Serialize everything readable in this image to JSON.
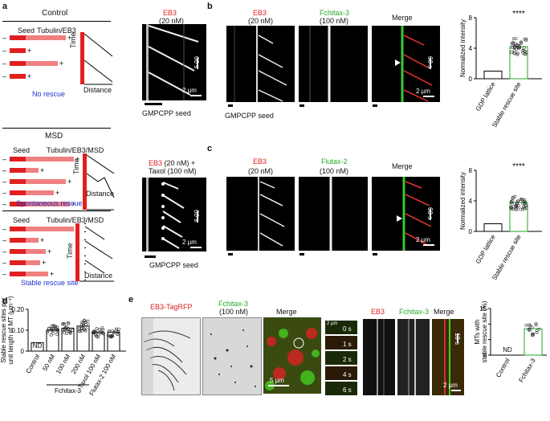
{
  "panel_letters": {
    "a": "a",
    "b": "b",
    "c": "c",
    "d": "d",
    "e": "e"
  },
  "schematic": {
    "control": {
      "title": "Control",
      "seed": "Seed",
      "mix": "Tubulin/EB3",
      "time": "Time",
      "distance": "Distance",
      "outcome": "No rescue"
    },
    "msd": {
      "title": "MSD",
      "seed": "Seed",
      "mix": "Tubulin/EB3/MSD",
      "time": "Time",
      "distance": "Distance",
      "outcome": "Spontaneous rescue"
    },
    "stable": {
      "seed": "Seed",
      "mix": "Tubulin/EB3/MSD",
      "time": "Time",
      "distance": "Distance",
      "outcome": "Stable rescue site"
    }
  },
  "panel_a": {
    "top": {
      "title_line1": "EB3",
      "title_line2": "(20 nM)",
      "time_bar": "60 s",
      "dist_bar": "2 µm",
      "seed": "GMPCPP seed"
    },
    "bottom": {
      "title_red": "EB3",
      "title_black": "(20 nM) +",
      "title_line2": "Taxol (100 nM)",
      "time_bar": "60 s",
      "dist_bar": "2 µm",
      "seed": "GMPCPP seed"
    }
  },
  "panel_b": {
    "ch1": "EB3",
    "ch1_conc": "(20 nM)",
    "ch2": "Fchitax-3",
    "ch2_conc": "(100 nM)",
    "merge": "Merge",
    "time_bar": "60 s",
    "dist_bar": "2 µm",
    "seed": "GMPCPP seed"
  },
  "panel_c": {
    "ch1": "EB3",
    "ch1_conc": "(20 nM)",
    "ch2": "Flutax-2",
    "ch2_conc": "(100 nM)",
    "merge": "Merge",
    "time_bar": "60 s",
    "dist_bar": "2 µm"
  },
  "panel_e": {
    "ch1": "EB3-TagRFP",
    "ch2": "Fchitax-3",
    "ch2_conc": "(100 nM)",
    "merge": "Merge",
    "scale": "5 µm",
    "series_scale": "2 µm",
    "series_times": [
      "0 s",
      "1 s",
      "2 s",
      "4 s",
      "6 s"
    ],
    "k_ch1": "EB3",
    "k_ch2": "Fchitax-3",
    "k_merge": "Merge",
    "k_time": "10 s",
    "k_dist": "2 µm"
  },
  "chart_data": [
    {
      "type": "bar",
      "panel": "b",
      "categories": [
        "GDP lattice",
        "Stable rescue site"
      ],
      "values": [
        1,
        4.2
      ],
      "ylim": [
        0,
        8
      ],
      "yticks": [
        0,
        4,
        8
      ],
      "ylabel": "Normalized intensity",
      "significance": "****",
      "bar_colors": [
        "#ffffff",
        "#ffffff"
      ],
      "bar_edges": [
        "#000000",
        "#22aa22"
      ]
    },
    {
      "type": "bar",
      "panel": "c",
      "categories": [
        "GDP lattice",
        "Stable rescue site"
      ],
      "values": [
        1,
        3.8
      ],
      "ylim": [
        0,
        8
      ],
      "yticks": [
        0,
        4,
        8
      ],
      "ylabel": "Normalized intensity",
      "significance": "****"
    },
    {
      "type": "bar",
      "panel": "d",
      "categories": [
        "Control",
        "50 nM",
        "100 nM",
        "200 nM",
        "Taxol 100 nM",
        "Flutax-2 100 nM"
      ],
      "group_label": "Fchitax-3",
      "values": [
        0.04,
        0.1,
        0.11,
        0.12,
        0.09,
        0.09
      ],
      "ylim": [
        0,
        0.2
      ],
      "yticks": [
        0,
        0.1,
        0.2
      ],
      "ytick_labels": [
        "0",
        "0.10",
        "0.20"
      ],
      "ylabel": "Stable rescue sites per unit length of MT (µm⁻¹)",
      "annotations": [
        "ND"
      ]
    },
    {
      "type": "bar",
      "panel": "e",
      "categories": [
        "Control",
        "Fchitax-3"
      ],
      "values": [
        0,
        8.5
      ],
      "ylim": [
        0,
        15
      ],
      "yticks": [
        0,
        5,
        10,
        15
      ],
      "ytick_labels": [
        "0",
        "",
        "",
        "15"
      ],
      "ylabel": "MTs with stable rescue site (%)",
      "annotations": [
        "ND"
      ]
    }
  ]
}
